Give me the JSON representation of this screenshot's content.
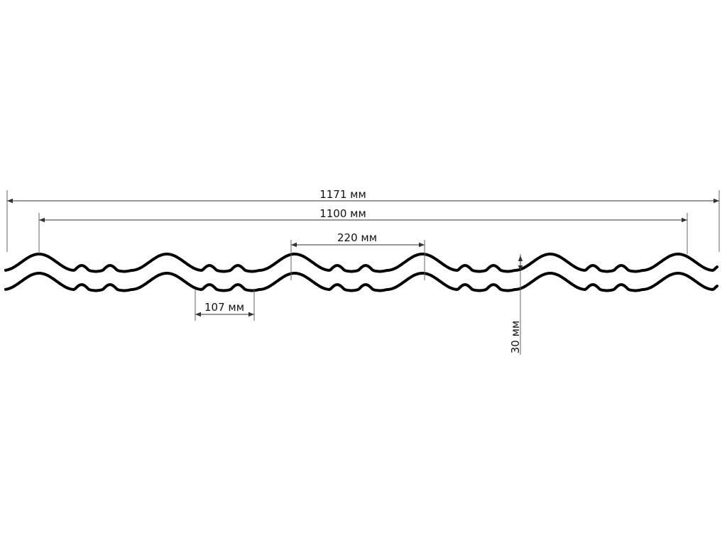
{
  "dimensions": {
    "total_width": "1171 мм",
    "working_width": "1100 мм",
    "wave_step": "220 мм",
    "small_step": "107 мм",
    "height": "30 мм"
  }
}
